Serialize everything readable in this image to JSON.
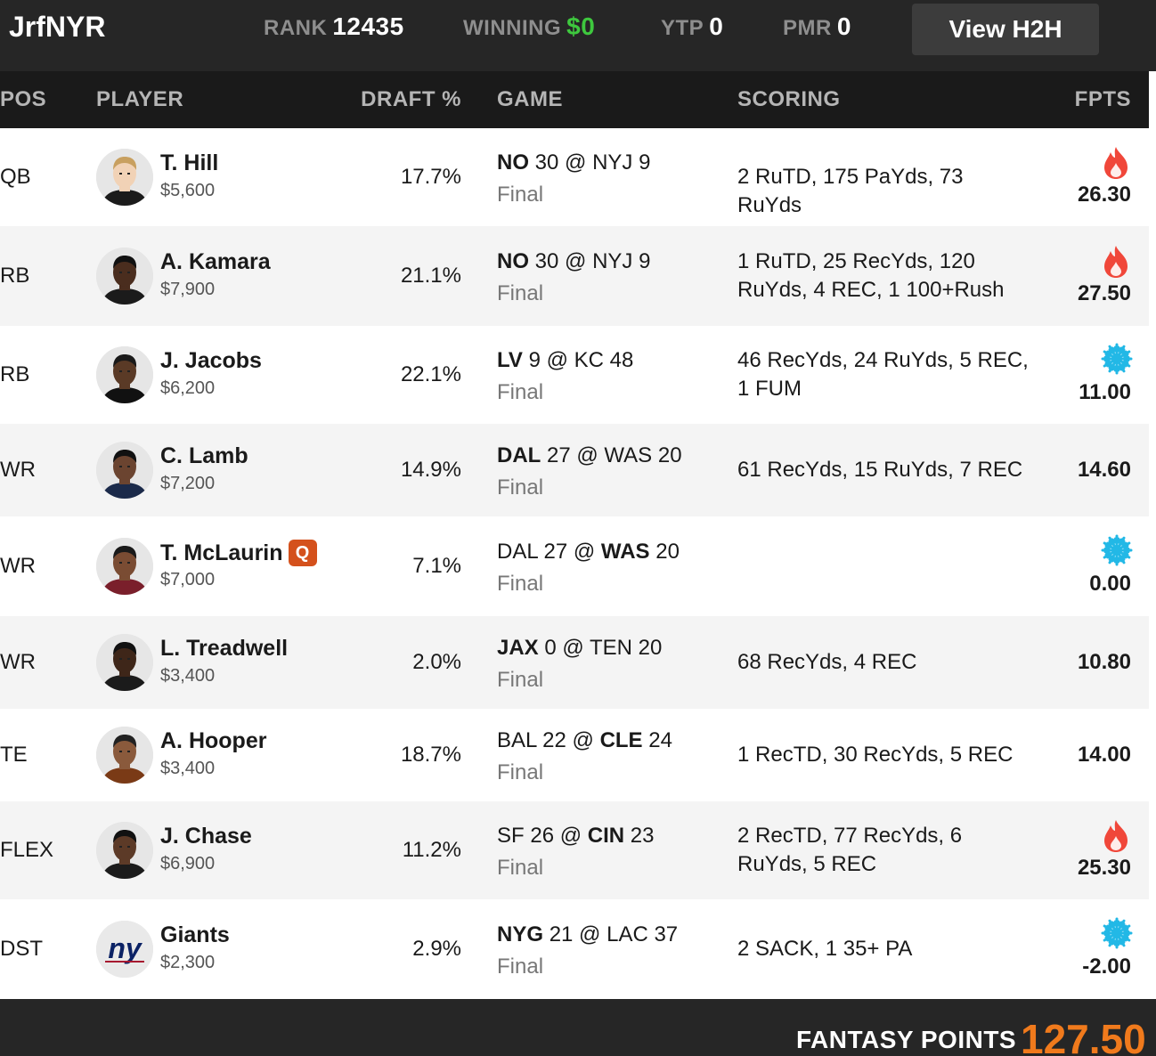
{
  "topbar": {
    "username": "JrfNYR",
    "rank_label": "RANK",
    "rank_value": "12435",
    "winning_label": "WINNING",
    "winning_value": "$0",
    "ytp_label": "YTP",
    "ytp_value": "0",
    "pmr_label": "PMR",
    "pmr_value": "0",
    "h2h_button": "View H2H"
  },
  "columns": {
    "pos": "POS",
    "player": "PLAYER",
    "draft": "DRAFT %",
    "game": "GAME",
    "scoring": "SCORING",
    "fpts": "FPTS"
  },
  "rows": [
    {
      "pos": "QB",
      "name": "T. Hill",
      "salary": "$5,600",
      "draft": "17.7%",
      "game_a": "NO",
      "game_a_score": "30",
      "game_b": "NYJ",
      "game_b_score": "9",
      "bold": "a",
      "status": "Final",
      "scoring": "2 RuTD, 175 PaYds, 73 RuYds",
      "fpts": "26.30",
      "icon": "fire-icon",
      "badge": ""
    },
    {
      "pos": "RB",
      "name": "A. Kamara",
      "salary": "$7,900",
      "draft": "21.1%",
      "game_a": "NO",
      "game_a_score": "30",
      "game_b": "NYJ",
      "game_b_score": "9",
      "bold": "a",
      "status": "Final",
      "scoring": "1 RuTD, 25 RecYds, 120 RuYds, 4 REC, 1 100+Rush",
      "fpts": "27.50",
      "icon": "fire-icon",
      "badge": ""
    },
    {
      "pos": "RB",
      "name": "J. Jacobs",
      "salary": "$6,200",
      "draft": "22.1%",
      "game_a": "LV",
      "game_a_score": "9",
      "game_b": "KC",
      "game_b_score": "48",
      "bold": "a",
      "status": "Final",
      "scoring": "46 RecYds, 24 RuYds, 5 REC, 1 FUM",
      "fpts": "11.00",
      "icon": "snowflake-icon",
      "badge": ""
    },
    {
      "pos": "WR",
      "name": "C. Lamb",
      "salary": "$7,200",
      "draft": "14.9%",
      "game_a": "DAL",
      "game_a_score": "27",
      "game_b": "WAS",
      "game_b_score": "20",
      "bold": "a",
      "status": "Final",
      "scoring": "61 RecYds, 15 RuYds, 7 REC",
      "fpts": "14.60",
      "icon": "",
      "badge": ""
    },
    {
      "pos": "WR",
      "name": "T. McLaurin",
      "salary": "$7,000",
      "draft": "7.1%",
      "game_a": "DAL",
      "game_a_score": "27",
      "game_b": "WAS",
      "game_b_score": "20",
      "bold": "b",
      "status": "Final",
      "scoring": "",
      "fpts": "0.00",
      "icon": "snowflake-icon",
      "badge": "Q"
    },
    {
      "pos": "WR",
      "name": "L. Treadwell",
      "salary": "$3,400",
      "draft": "2.0%",
      "game_a": "JAX",
      "game_a_score": "0",
      "game_b": "TEN",
      "game_b_score": "20",
      "bold": "a",
      "status": "Final",
      "scoring": "68 RecYds, 4 REC",
      "fpts": "10.80",
      "icon": "",
      "badge": ""
    },
    {
      "pos": "TE",
      "name": "A. Hooper",
      "salary": "$3,400",
      "draft": "18.7%",
      "game_a": "BAL",
      "game_a_score": "22",
      "game_b": "CLE",
      "game_b_score": "24",
      "bold": "b",
      "status": "Final",
      "scoring": "1 RecTD, 30 RecYds, 5 REC",
      "fpts": "14.00",
      "icon": "",
      "badge": ""
    },
    {
      "pos": "FLEX",
      "name": "J. Chase",
      "salary": "$6,900",
      "draft": "11.2%",
      "game_a": "SF",
      "game_a_score": "26",
      "game_b": "CIN",
      "game_b_score": "23",
      "bold": "b",
      "status": "Final",
      "scoring": "2 RecTD, 77 RecYds, 6 RuYds, 5 REC",
      "fpts": "25.30",
      "icon": "fire-icon",
      "badge": ""
    },
    {
      "pos": "DST",
      "name": "Giants",
      "salary": "$2,300",
      "draft": "2.9%",
      "game_a": "NYG",
      "game_a_score": "21",
      "game_b": "LAC",
      "game_b_score": "37",
      "bold": "a",
      "status": "Final",
      "scoring": "2 SACK, 1 35+ PA",
      "fpts": "-2.00",
      "icon": "snowflake-icon",
      "badge": "",
      "logo": "ny"
    }
  ],
  "footer": {
    "label": "FANTASY POINTS",
    "total": "127.50"
  },
  "colors": {
    "fire": "#f0473a",
    "snow": "#22b8e6",
    "winning": "#3ec83e",
    "total": "#f07a1c",
    "badge": "#d4511c"
  }
}
